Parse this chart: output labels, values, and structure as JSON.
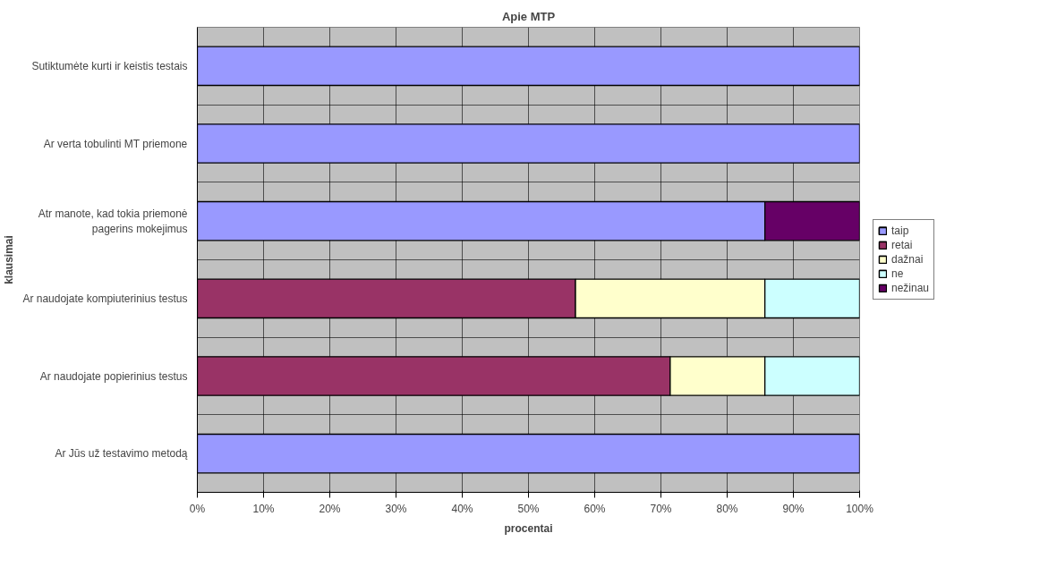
{
  "chart_data": {
    "type": "bar",
    "orientation": "horizontal",
    "stacked": true,
    "title": "Apie MTP",
    "xlabel": "procentai",
    "ylabel": "klausimai",
    "categories": [
      "Sutiktumėte kurti ir keistis testais",
      "Ar verta tobulinti MT priemone",
      "Atr manote, kad tokia priemonė\npagerins mokejimus",
      "Ar naudojate kompiuterinius testus",
      "Ar naudojate popierinius testus",
      "Ar Jūs už testavimo metodą"
    ],
    "series": [
      {
        "name": "taip",
        "color": "#9999ff",
        "values": [
          100,
          100,
          85.7,
          null,
          null,
          100
        ]
      },
      {
        "name": "retai",
        "color": "#993366",
        "values": [
          null,
          null,
          null,
          57.1,
          71.4,
          null
        ]
      },
      {
        "name": "dažnai",
        "color": "#ffffcc",
        "values": [
          null,
          null,
          null,
          28.6,
          14.3,
          null
        ]
      },
      {
        "name": "ne",
        "color": "#ccffff",
        "values": [
          null,
          null,
          null,
          14.3,
          14.3,
          null
        ]
      },
      {
        "name": "nežinau",
        "color": "#660066",
        "values": [
          null,
          null,
          14.3,
          null,
          null,
          null
        ]
      }
    ],
    "xlim": [
      0,
      100
    ],
    "xticks": [
      {
        "value": 0,
        "label": "0%"
      },
      {
        "value": 10,
        "label": "10%"
      },
      {
        "value": 20,
        "label": "20%"
      },
      {
        "value": 30,
        "label": "30%"
      },
      {
        "value": 40,
        "label": "40%"
      },
      {
        "value": 50,
        "label": "50%"
      },
      {
        "value": 60,
        "label": "60%"
      },
      {
        "value": 70,
        "label": "70%"
      },
      {
        "value": 80,
        "label": "80%"
      },
      {
        "value": 90,
        "label": "90%"
      },
      {
        "value": 100,
        "label": "100%"
      }
    ],
    "grid": true,
    "legend": "right"
  }
}
